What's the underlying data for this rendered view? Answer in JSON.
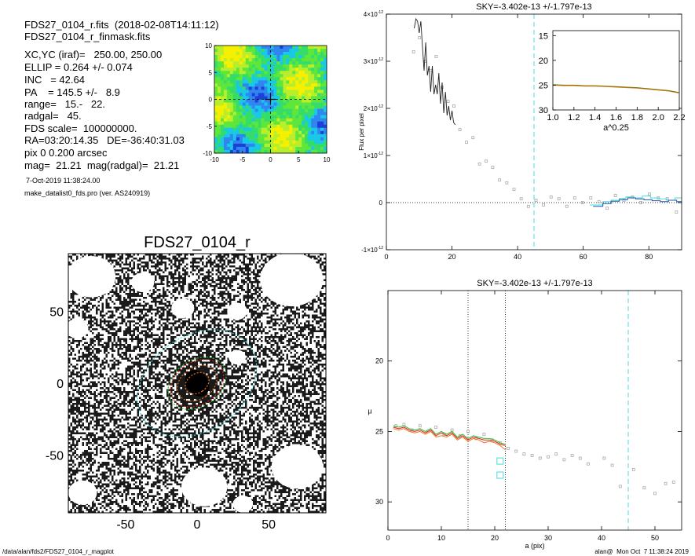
{
  "header": {
    "lines": [
      "FDS27_0104_r.fits  (2018-02-08T14:11:12)",
      "FDS27_0104_r_finmask.fits",
      "XC,YC (iraf)=   250.00, 250.00",
      "ELLIP = 0.264 +/- 0.074",
      "INC   = 42.64",
      "PA    = 145.5 +/-   8.9",
      "range=   15.-   22.",
      "radgal=   45.",
      "FDS scale=  100000000.",
      "RA=03:20:14.35   DE=-36:40:31.03",
      "pix 0 0.200 arcsec",
      "mag=  21.21  mag(radgal)=  21.21"
    ],
    "date": "7-Oct-2019 11:38:24.00",
    "program": "make_datalist0_fds.pro (ver. AS240919)"
  },
  "footer": {
    "path": "/data/alan/fds2/FDS27_0104_r_magplot",
    "user": "alan@  Mon Oct  7 11:38:24 2019"
  },
  "colors": {
    "cyan": "#44dddd",
    "orange": "#ee7722",
    "red": "#dd2222",
    "green": "#33bb33",
    "olive": "#777700",
    "gray_points": "#aaaaaa"
  },
  "chart_data": [
    {
      "id": "residual-map",
      "type": "heatmap",
      "xlim": [
        -10,
        10
      ],
      "ylim": [
        -10,
        10
      ],
      "xticks": [
        "-10",
        "-5",
        "0",
        "5",
        "10"
      ],
      "yticks": [
        "10",
        "5",
        "0",
        "-5",
        "-10"
      ],
      "palette": [
        "#1d3fd8",
        "#2f86f0",
        "#18c8e8",
        "#34dd6a",
        "#5fe63a",
        "#b8ee2c",
        "#f4f000"
      ]
    },
    {
      "id": "galaxy-image",
      "type": "image",
      "title": "FDS27_0104_r",
      "xlim": [
        -90,
        90
      ],
      "ylim": [
        -90,
        90
      ],
      "xticks": [
        "-50",
        "0",
        "50"
      ],
      "yticks": [
        "50",
        "0",
        "-50"
      ],
      "ellipse_pa_deg": 145.5,
      "ellipse_ellip": 0.264,
      "ellipses": [
        {
          "a": 45,
          "color": "cyan"
        },
        {
          "a": 22,
          "color": "green"
        },
        {
          "a": 20,
          "color": "red"
        },
        {
          "a": 15,
          "color": "orange"
        },
        {
          "a": 9,
          "color": "orange"
        }
      ],
      "masks": [
        {
          "x": -74,
          "y": 74,
          "r": 17
        },
        {
          "x": -38,
          "y": 70,
          "r": 8
        },
        {
          "x": -10,
          "y": 52,
          "r": 8
        },
        {
          "x": 66,
          "y": 72,
          "r": 22
        },
        {
          "x": 28,
          "y": 50,
          "r": 7
        },
        {
          "x": 28,
          "y": 18,
          "r": 6
        },
        {
          "x": -84,
          "y": 38,
          "r": 8
        },
        {
          "x": 70,
          "y": -58,
          "r": 18
        },
        {
          "x": 5,
          "y": -72,
          "r": 16
        },
        {
          "x": -80,
          "y": -76,
          "r": 10
        },
        {
          "x": 32,
          "y": -84,
          "r": 7
        }
      ]
    },
    {
      "id": "flux-profile",
      "type": "line",
      "title": "SKY=-3.402e-13 +/-1.797e-13",
      "ylabel": "Flux per pixel",
      "xlim": [
        0,
        90
      ],
      "ylim": [
        -1e-12,
        4e-12
      ],
      "xticks": [
        "0",
        "20",
        "40",
        "60",
        "80"
      ],
      "ytick_values": [
        4e-12,
        3e-12,
        2e-12,
        1e-12,
        0,
        -1e-12
      ],
      "ytick_mantissa": [
        "4",
        "3",
        "2",
        "1",
        "0",
        "-1"
      ],
      "ytick_exp": "-12",
      "vline_x": 45,
      "profile": {
        "x": [
          8.5,
          9.0,
          9.5,
          10.0,
          10.5,
          11.0,
          11.5,
          12.0,
          12.5,
          13.0,
          13.5,
          14.0,
          14.5,
          15.0,
          15.5,
          16.0,
          16.5,
          17.0,
          17.5,
          18.0,
          18.5,
          19.0,
          19.5,
          20.0,
          20.5,
          21.0
        ],
        "y": [
          3.7e-12,
          3.9e-12,
          3.85e-12,
          3.6e-12,
          3.85e-12,
          3.3e-12,
          2.8e-12,
          3.4e-12,
          2.7e-12,
          2.9e-12,
          2.35e-12,
          2.9e-12,
          2.3e-12,
          2.5e-12,
          2.3e-12,
          2.75e-12,
          2.1e-12,
          2.55e-12,
          1.9e-12,
          2.35e-12,
          1.85e-12,
          2.05e-12,
          1.75e-12,
          1.95e-12,
          1.7e-12,
          1.65e-12
        ]
      },
      "points": {
        "x": [
          8.3,
          10.1,
          11.8,
          13.5,
          15.2,
          17.0,
          18.8,
          20.6,
          22.4,
          24.4,
          26.4,
          28.4,
          30.4,
          32.4,
          34.5,
          36.7,
          38.9,
          41.1,
          43.3,
          45.6,
          47.9,
          50.2,
          52.6,
          55.0,
          57.4,
          59.8,
          62.3,
          64.8,
          67.3,
          69.8,
          72.4,
          75.0,
          77.6,
          80.2,
          82.9,
          85.6,
          88.4
        ],
        "y": [
          3.2e-12,
          3.5e-12,
          3e-12,
          2.8e-12,
          3.1e-12,
          2.45e-12,
          2.15e-12,
          2.05e-12,
          1.55e-12,
          1.28e-12,
          1.38e-12,
          8.2e-13,
          8.8e-13,
          7.5e-13,
          4.8e-13,
          4.2e-13,
          2.8e-13,
          8e-14,
          -8e-14,
          5e-14,
          -5e-14,
          1.2e-13,
          8e-14,
          -8e-14,
          1e-13,
          0.0,
          1e-13,
          2e-14,
          -1.2e-13,
          1.5e-13,
          5e-14,
          1.2e-13,
          0.0,
          1.8e-13,
          1e-13,
          8e-14,
          -2e-13
        ]
      },
      "step_cyan": {
        "x": [
          62,
          63.5,
          66,
          68.5,
          71,
          73,
          75.5,
          78,
          80.5,
          83,
          85.5,
          88,
          90
        ],
        "y": [
          -5e-14,
          -5e-14,
          2e-14,
          5e-14,
          9e-14,
          1.2e-13,
          1e-13,
          1.4e-13,
          1e-13,
          8e-14,
          5e-14,
          1e-13,
          1e-13
        ]
      },
      "step_blue": {
        "x": [
          63,
          66,
          68.5,
          71,
          73.5,
          76,
          78.5,
          81,
          83.5,
          86,
          88.5,
          90
        ],
        "y": [
          -8e-14,
          -2e-14,
          3e-14,
          6e-14,
          1e-13,
          8e-14,
          6e-14,
          4e-14,
          2e-14,
          5e-14,
          2e-14,
          2e-14
        ]
      },
      "inset": {
        "xlabel": "a^0.25",
        "xlim": [
          1.0,
          2.2
        ],
        "ylim": [
          30,
          14
        ],
        "xticks": [
          "1.0",
          "1.2",
          "1.4",
          "1.6",
          "1.8",
          "2.0",
          "2.2"
        ],
        "yticks": [
          "15",
          "20",
          "25",
          "30"
        ],
        "curve": {
          "x": [
            1.0,
            1.1,
            1.2,
            1.3,
            1.4,
            1.5,
            1.6,
            1.7,
            1.8,
            1.9,
            2.0,
            2.05,
            2.1,
            2.15,
            2.2
          ],
          "y": [
            24.9,
            25.0,
            25.0,
            25.1,
            25.1,
            25.2,
            25.3,
            25.4,
            25.5,
            25.7,
            25.9,
            26.0,
            26.1,
            26.3,
            26.5
          ]
        }
      }
    },
    {
      "id": "surface-brightness",
      "type": "line",
      "title": "SKY=-3.402e-13 +/-1.797e-13",
      "xlabel": "a (pix)",
      "ylabel": "µ",
      "xlim": [
        0,
        55
      ],
      "ylim": [
        32,
        15
      ],
      "xticks": [
        "0",
        "10",
        "20",
        "30",
        "40",
        "50"
      ],
      "yticks": [
        "20",
        "25",
        "30"
      ],
      "vlines_dotted": [
        15,
        22
      ],
      "vline_dashed": 45,
      "profiles": [
        {
          "color": "orange",
          "x": [
            1,
            2,
            3,
            4,
            5,
            6,
            7,
            8,
            9,
            10,
            11,
            12,
            13,
            14,
            15,
            16,
            17,
            18,
            19,
            20,
            21,
            22
          ],
          "y": [
            24.8,
            24.9,
            24.8,
            25.0,
            25.1,
            25.0,
            25.2,
            25.0,
            25.4,
            25.3,
            25.4,
            25.2,
            25.6,
            25.4,
            25.7,
            25.5,
            25.6,
            25.8,
            25.7,
            25.8,
            26.0,
            26.3
          ]
        },
        {
          "color": "red",
          "x": [
            1,
            2,
            3,
            4,
            5,
            6,
            7,
            8,
            9,
            10,
            11,
            12,
            13,
            14,
            15,
            16,
            17,
            18,
            19,
            20,
            21,
            22
          ],
          "y": [
            24.7,
            24.8,
            24.7,
            24.9,
            25.0,
            24.9,
            25.1,
            24.9,
            25.3,
            25.1,
            25.3,
            25.1,
            25.5,
            25.3,
            25.6,
            25.4,
            25.5,
            25.6,
            25.6,
            25.7,
            25.9,
            26.0
          ]
        },
        {
          "color": "green",
          "x": [
            1,
            2,
            3,
            4,
            5,
            6,
            7,
            8,
            9,
            10,
            11,
            12,
            13,
            14,
            15,
            16,
            17,
            18,
            19,
            20,
            21,
            22
          ],
          "y": [
            24.6,
            24.7,
            24.6,
            24.8,
            24.9,
            24.8,
            25.0,
            24.8,
            25.2,
            25.0,
            25.2,
            25.0,
            25.4,
            25.2,
            25.5,
            25.3,
            25.4,
            25.5,
            25.5,
            25.6,
            25.8,
            25.9
          ]
        }
      ],
      "points": {
        "x": [
          1.5,
          3,
          4.5,
          6,
          7.5,
          9,
          10.5,
          12,
          13.5,
          15,
          16.5,
          18,
          19.5,
          21,
          22.5,
          24,
          25.5,
          27,
          28.5,
          30,
          31.5,
          33,
          34.5,
          36,
          37.5,
          40.5,
          42,
          43.5,
          46,
          48,
          50,
          52,
          53.5
        ],
        "y": [
          24.6,
          24.5,
          24.9,
          24.6,
          25.0,
          24.7,
          25.2,
          24.9,
          25.3,
          25.0,
          25.5,
          25.2,
          25.6,
          25.8,
          26.2,
          26.4,
          26.6,
          26.7,
          26.9,
          26.8,
          26.6,
          27.0,
          26.7,
          26.9,
          27.3,
          26.9,
          27.4,
          28.9,
          27.7,
          29.0,
          29.4,
          28.7,
          28.6
        ]
      },
      "squares": [
        {
          "x": 21,
          "y": 27.1,
          "color": "cyan"
        },
        {
          "x": 21,
          "y": 28.1,
          "color": "cyan"
        }
      ]
    }
  ]
}
